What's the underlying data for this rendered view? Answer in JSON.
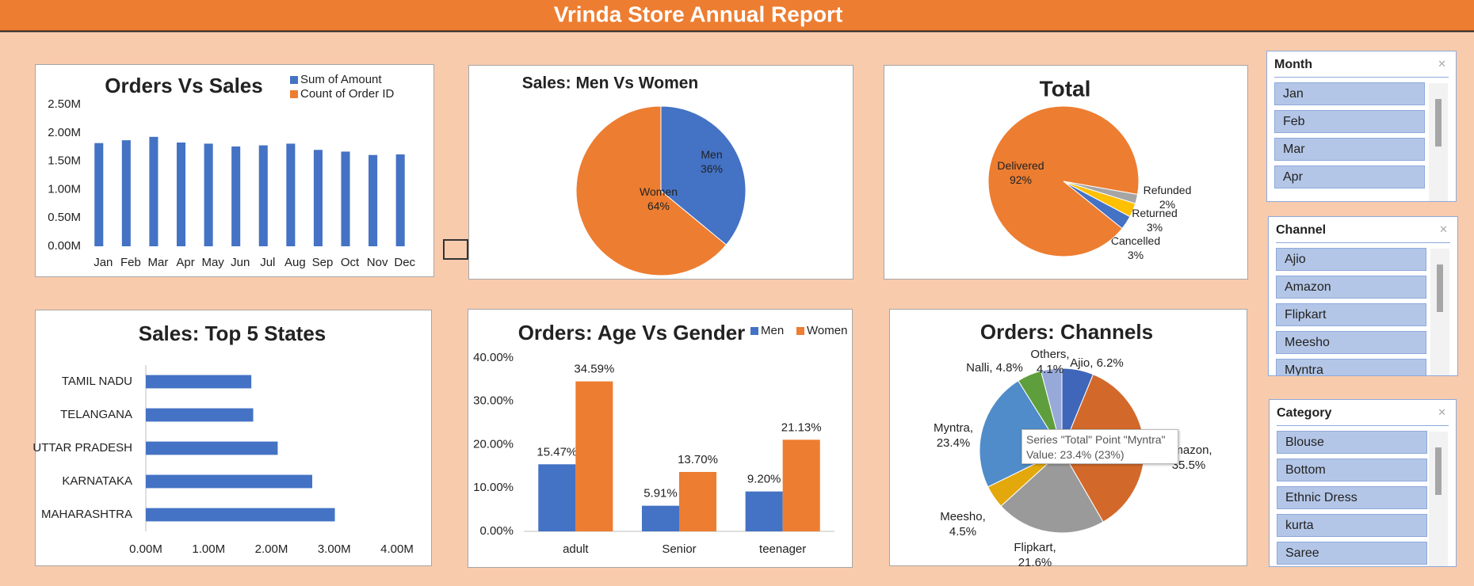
{
  "header": {
    "title": "Vrinda Store Annual Report"
  },
  "chart_data": [
    {
      "type": "bar",
      "title": "Orders Vs Sales",
      "categories": [
        "Jan",
        "Feb",
        "Mar",
        "Apr",
        "May",
        "Jun",
        "Jul",
        "Aug",
        "Sep",
        "Oct",
        "Nov",
        "Dec"
      ],
      "series": [
        {
          "name": "Sum of Amount",
          "color": "#4472c4",
          "values": [
            1820000,
            1870000,
            1930000,
            1830000,
            1810000,
            1760000,
            1780000,
            1810000,
            1700000,
            1670000,
            1610000,
            1620000
          ]
        },
        {
          "name": "Count of Order ID",
          "color": "#ed7d31",
          "values": [
            0,
            0,
            0,
            0,
            0,
            0,
            0,
            0,
            0,
            0,
            0,
            0
          ]
        }
      ],
      "ylim": [
        0,
        2500000
      ],
      "yticks": [
        {
          "value": 0,
          "label": "0.00M"
        },
        {
          "value": 500000,
          "label": "0.50M"
        },
        {
          "value": 1000000,
          "label": "1.00M"
        },
        {
          "value": 1500000,
          "label": "1.50M"
        },
        {
          "value": 2000000,
          "label": "2.00M"
        },
        {
          "value": 2500000,
          "label": "2.50M"
        }
      ],
      "grid": false
    },
    {
      "type": "pie",
      "title": "Sales: Men Vs Women",
      "categories": [
        "Men",
        "Women"
      ],
      "values": [
        36,
        64
      ],
      "value_labels": [
        "36%",
        "64%"
      ],
      "colors": [
        "#4472c4",
        "#ed7d31"
      ]
    },
    {
      "type": "pie",
      "title": "Total",
      "categories": [
        "Cancelled",
        "Delivered",
        "Refunded",
        "Returned"
      ],
      "values": [
        3,
        92,
        2,
        3
      ],
      "value_labels": [
        "3%",
        "92%",
        "2%",
        "3%"
      ],
      "colors": [
        "#4472c4",
        "#ed7d31",
        "#a5a5a5",
        "#ffc000"
      ]
    },
    {
      "type": "hbar",
      "title": "Sales: Top 5 States",
      "categories": [
        "TAMIL NADU",
        "TELANGANA",
        "UTTAR PRADESH",
        "KARNATAKA",
        "MAHARASHTRA"
      ],
      "values": [
        1680000,
        1710000,
        2100000,
        2650000,
        3010000
      ],
      "color": "#4472c4",
      "xlim": [
        0,
        4000000
      ],
      "xticks": [
        {
          "value": 0,
          "label": "0.00M"
        },
        {
          "value": 1000000,
          "label": "1.00M"
        },
        {
          "value": 2000000,
          "label": "2.00M"
        },
        {
          "value": 3000000,
          "label": "3.00M"
        },
        {
          "value": 4000000,
          "label": "4.00M"
        }
      ]
    },
    {
      "type": "bar",
      "title": "Orders: Age Vs Gender",
      "categories": [
        "adult",
        "Senior",
        "teenager"
      ],
      "series": [
        {
          "name": "Men",
          "color": "#4472c4",
          "values": [
            15.47,
            5.91,
            9.2
          ],
          "value_labels": [
            "15.47%",
            "5.91%",
            "9.20%"
          ]
        },
        {
          "name": "Women",
          "color": "#ed7d31",
          "values": [
            34.59,
            13.7,
            21.13
          ],
          "value_labels": [
            "34.59%",
            "13.70%",
            "21.13%"
          ]
        }
      ],
      "ylim": [
        0,
        40
      ],
      "yticks": [
        {
          "value": 0,
          "label": "0.00%"
        },
        {
          "value": 10,
          "label": "10.00%"
        },
        {
          "value": 20,
          "label": "20.00%"
        },
        {
          "value": 30,
          "label": "30.00%"
        },
        {
          "value": 40,
          "label": "40.00%"
        }
      ],
      "grid": false
    },
    {
      "type": "pie",
      "title": "Orders: Channels",
      "categories": [
        "Ajio",
        "Amazon",
        "Flipkart",
        "Meesho",
        "Myntra",
        "Nalli",
        "Others"
      ],
      "values": [
        6.2,
        35.5,
        21.6,
        4.5,
        23.4,
        4.8,
        4.1
      ],
      "value_labels": [
        "Ajio, 6.2%",
        "Amazon, 35.5%",
        "Flipkart, 21.6%",
        "Meesho, 4.5%",
        "Myntra, 23.4%",
        "Nalli, 4.8%",
        "Others, 4.1%"
      ],
      "colors": [
        "#3f66b8",
        "#d2692a",
        "#9a9a9a",
        "#e3a80c",
        "#4f8cc9",
        "#5e9e3c",
        "#97a9d8"
      ],
      "tooltip": [
        "Series \"Total\" Point \"Myntra\"",
        "Value: 23.4% (23%)"
      ]
    }
  ],
  "slicers": [
    {
      "title": "Month",
      "items": [
        "Jan",
        "Feb",
        "Mar",
        "Apr"
      ]
    },
    {
      "title": "Channel",
      "items": [
        "Ajio",
        "Amazon",
        "Flipkart",
        "Meesho",
        "Myntra"
      ]
    },
    {
      "title": "Category",
      "items": [
        "Blouse",
        "Bottom",
        "Ethnic Dress",
        "kurta",
        "Saree"
      ]
    }
  ]
}
